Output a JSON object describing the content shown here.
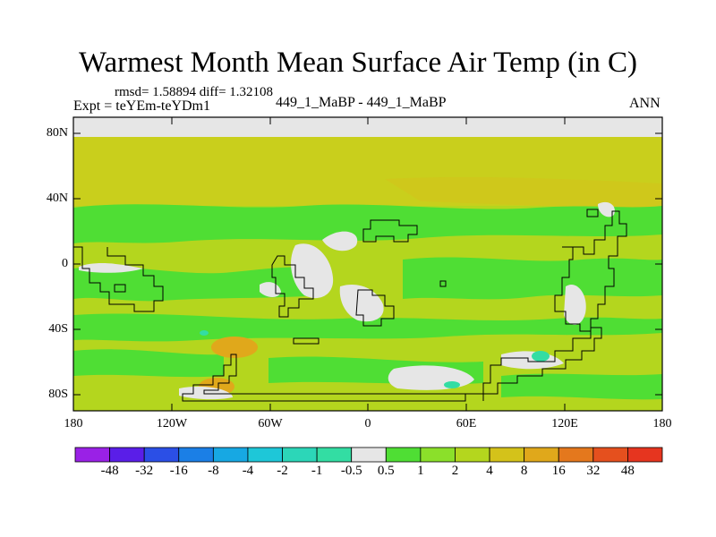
{
  "title": "Warmest Month Mean Surface Air Temp (in C)",
  "stats": "rmsd= 1.58894 diff= 1.32108",
  "experiment": "Expt = teYEm-teYDm1",
  "cases": "449_1_MaBP - 449_1_MaBP",
  "season": "ANN",
  "map": {
    "projection": "cylindrical-equidistant",
    "lon_range": [
      -180,
      180
    ],
    "lat_range": [
      -90,
      90
    ],
    "lat_ticks": [
      "80N",
      "40N",
      "0",
      "40S",
      "80S"
    ],
    "lon_ticks": [
      "180",
      "120W",
      "60W",
      "0",
      "60E",
      "120E",
      "180"
    ]
  },
  "colorbar": {
    "labels": [
      "-48",
      "-32",
      "-16",
      "-8",
      "-4",
      "-2",
      "-1",
      "-0.5",
      "0.5",
      "1",
      "2",
      "4",
      "8",
      "16",
      "32",
      "48"
    ],
    "colors": [
      "#9a21e6",
      "#5a1ee8",
      "#2b4fe6",
      "#1b7fe6",
      "#17a8e3",
      "#1ec7d8",
      "#2cd6b8",
      "#33dda3",
      "#e6e6e6",
      "#4fde34",
      "#8be02a",
      "#b4d61e",
      "#d4c21a",
      "#e0a81b",
      "#e4781d",
      "#e5501e",
      "#e6351f"
    ]
  },
  "legend_colors": {
    "near_zero": "#e6e6e6",
    "pos_0_5_to_1": "#4fde34",
    "pos_1_to_2": "#8be02a",
    "pos_2_to_4": "#b4d61e",
    "pos_4_to_8": "#d4c21a",
    "pos_8_to_16": "#e0a81b",
    "neg_0_5_to_1": "#33dda3"
  }
}
